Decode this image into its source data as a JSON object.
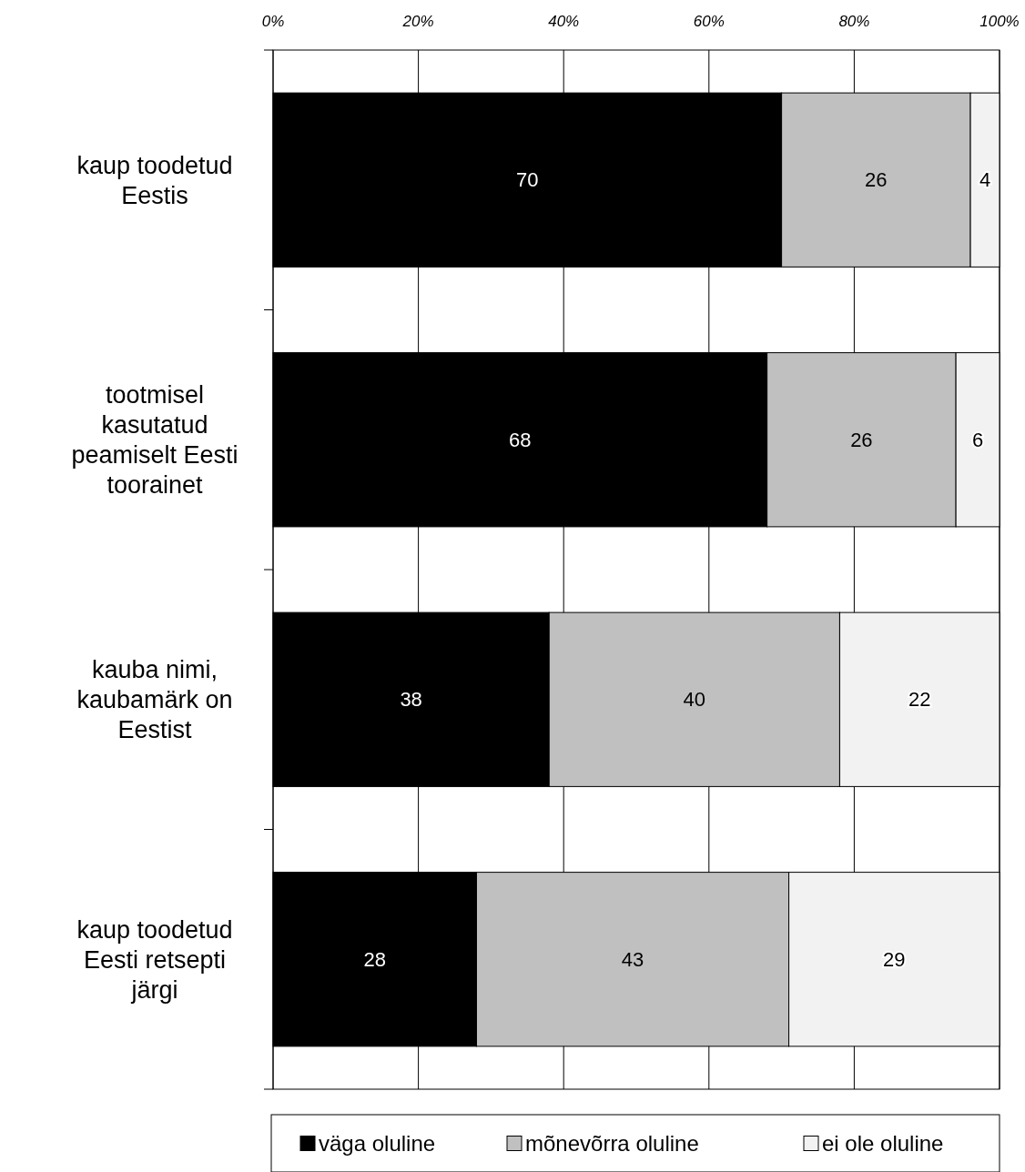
{
  "chart_data": {
    "type": "bar",
    "orientation": "horizontal",
    "stacked": true,
    "categories": [
      "kaup toodetud Eestis",
      "tootmisel kasutatud peamiselt Eesti toorainet",
      "kauba nimi, kaubamärk on Eestist",
      "kaup toodetud Eesti retsepti järgi"
    ],
    "series": [
      {
        "name": "väga oluline",
        "color": "#000000",
        "values": [
          70,
          68,
          38,
          28
        ]
      },
      {
        "name": "mõnevõrra oluline",
        "color": "#c0c0c0",
        "values": [
          26,
          26,
          40,
          43
        ]
      },
      {
        "name": "ei ole oluline",
        "color": "#f2f2f2",
        "values": [
          4,
          6,
          22,
          29
        ]
      }
    ],
    "xlim": [
      0,
      100
    ],
    "xticks": [
      {
        "value": 0,
        "label": "0%"
      },
      {
        "value": 20,
        "label": "20%"
      },
      {
        "value": 40,
        "label": "40%"
      },
      {
        "value": 60,
        "label": "60%"
      },
      {
        "value": 80,
        "label": "80%"
      },
      {
        "value": 100,
        "label": "100%"
      }
    ],
    "grid": "x",
    "data_labels": true,
    "legend": "bottom"
  }
}
